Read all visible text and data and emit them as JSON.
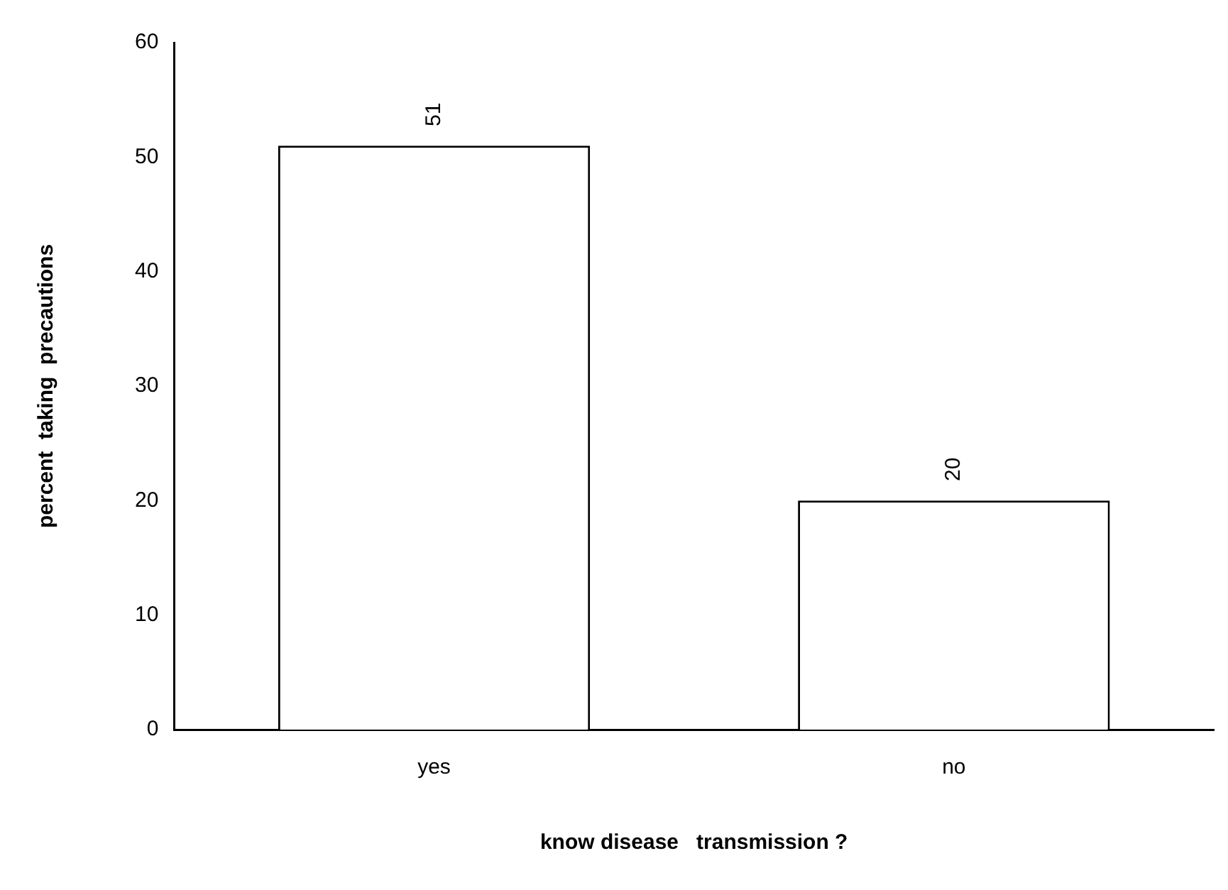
{
  "chart_data": {
    "type": "bar",
    "xlabel": "know disease   transmission ?",
    "ylabel": "percent  taking  precautions",
    "categories": [
      "yes",
      "no"
    ],
    "values": [
      51,
      20
    ],
    "color": "#ffffff",
    "ylim": [
      0,
      60
    ],
    "yticks": [
      0,
      10,
      20,
      30,
      40,
      50,
      60
    ],
    "grid": false,
    "legend": false,
    "data_labels": true
  }
}
